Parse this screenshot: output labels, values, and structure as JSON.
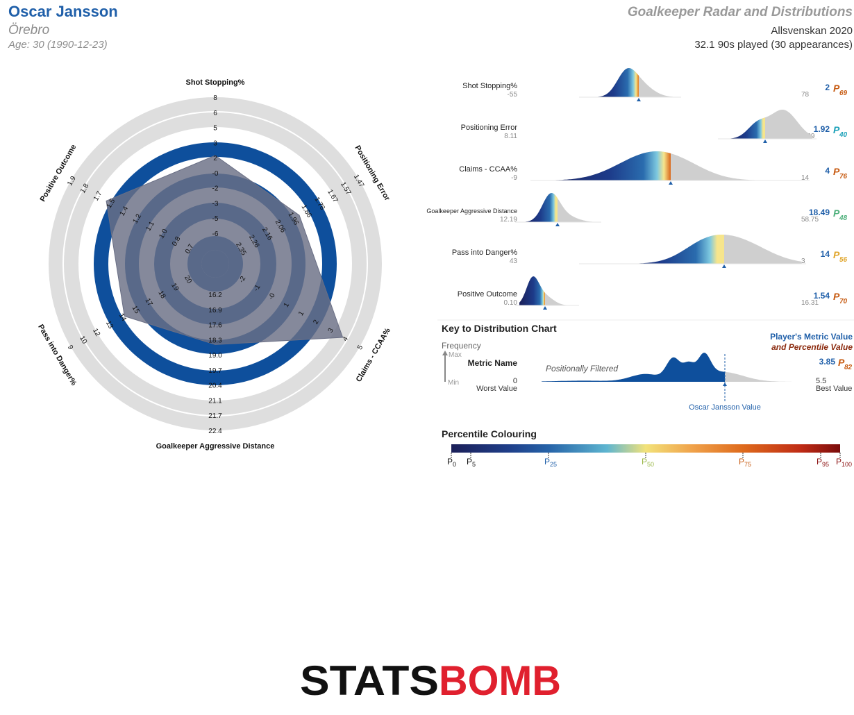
{
  "header": {
    "player_name": "Oscar Jansson",
    "team": "Örebro",
    "age": "Age: 30 (1990-12-23)",
    "report_title": "Goalkeeper Radar and Distributions",
    "competition": "Allsvenskan 2020",
    "minutes": "32.1 90s played (30 appearances)"
  },
  "colors": {
    "brand_blue": "#1f5fa9",
    "radar_fill": "#0e4f9c",
    "radar_ring_gray": "#dedede",
    "percentile_orange": "#c75b12",
    "logo_red": "#e0202e",
    "logo_black": "#111111"
  },
  "chart_data": [
    {
      "type": "radar",
      "grid": true,
      "metrics": [
        {
          "name": "Shot Stopping%",
          "ticks": [
            "-6",
            "-5",
            "-3",
            "-2",
            "-0",
            "2",
            "3",
            "5",
            "6",
            "8"
          ],
          "value": 2
        },
        {
          "name": "Positioning Error",
          "ticks": [
            "2.35",
            "2.26",
            "2.16",
            "2.06",
            "1.96",
            "1.86",
            "1.76",
            "1.67",
            "1.57",
            "1.47"
          ],
          "value": 1.92
        },
        {
          "name": "Claims - CCAA%",
          "ticks": [
            "-2",
            "-1",
            "-0",
            "1",
            "1",
            "2",
            "3",
            "4",
            "5"
          ],
          "value": 4
        },
        {
          "name": "Goalkeeper Aggressive Distance",
          "ticks": [
            "16.2",
            "16.9",
            "17.6",
            "18.3",
            "19.0",
            "19.7",
            "20.4",
            "21.1",
            "21.7",
            "22.4"
          ],
          "value": 18.49
        },
        {
          "name": "Pass into Danger%",
          "ticks": [
            "20",
            "19",
            "18",
            "17",
            "15",
            "14",
            "13",
            "12",
            "10",
            "9"
          ],
          "value": 14
        },
        {
          "name": "Positive Outcome",
          "ticks": [
            "0.7",
            "0.8",
            "1.0",
            "1.1",
            "1.2",
            "1.4",
            "1.5",
            "1.7",
            "1.8",
            "1.9"
          ],
          "value": 1.54
        }
      ]
    },
    {
      "type": "area",
      "rows": [
        {
          "metric": "Shot Stopping%",
          "worst": "-55",
          "best": "78",
          "value": "2",
          "percentile": "69",
          "pct_color": "#c75b12"
        },
        {
          "metric": "Positioning Error",
          "worst": "8.11",
          "best": "1.09",
          "value": "1.92",
          "percentile": "40",
          "pct_color": "#1aa0b8"
        },
        {
          "metric": "Claims - CCAA%",
          "worst": "-9",
          "best": "14",
          "value": "4",
          "percentile": "76",
          "pct_color": "#c75b12"
        },
        {
          "metric": "Goalkeeper Aggressive Distance",
          "worst": "12.19",
          "best": "58.75",
          "value": "18.49",
          "percentile": "48",
          "pct_color": "#4caf7a"
        },
        {
          "metric": "Pass into Danger%",
          "worst": "43",
          "best": "3",
          "value": "14",
          "percentile": "56",
          "pct_color": "#e0a52a"
        },
        {
          "metric": "Positive Outcome",
          "worst": "0.10",
          "best": "16.31",
          "value": "1.54",
          "percentile": "70",
          "pct_color": "#c75b12"
        }
      ]
    }
  ],
  "key": {
    "title": "Key to Distribution Chart",
    "frequency": "Frequency",
    "max": "Max",
    "min": "Min",
    "metric_name": "Metric Name",
    "positionally_filtered": "Positionally Filtered",
    "players_value": "Player's Metric Value",
    "and_percentile": "and Percentile Value",
    "example_value": "3.85",
    "example_percentile": "82",
    "worst_num": "0",
    "worst_label": "Worst Value",
    "best_num": "5.5",
    "best_label": "Best Value",
    "player_value_label": "Oscar Jansson Value"
  },
  "percentile_colouring": {
    "title": "Percentile Colouring",
    "stops": [
      {
        "label": "0",
        "color": "#111111"
      },
      {
        "label": "5",
        "color": "#111111"
      },
      {
        "label": "25",
        "color": "#1f5fa9"
      },
      {
        "label": "50",
        "color": "#9bb84a"
      },
      {
        "label": "75",
        "color": "#c75b12"
      },
      {
        "label": "95",
        "color": "#8b1010"
      },
      {
        "label": "100",
        "color": "#8b1010"
      }
    ]
  },
  "logo": {
    "part1": "STATS",
    "part2": "BOMB"
  }
}
